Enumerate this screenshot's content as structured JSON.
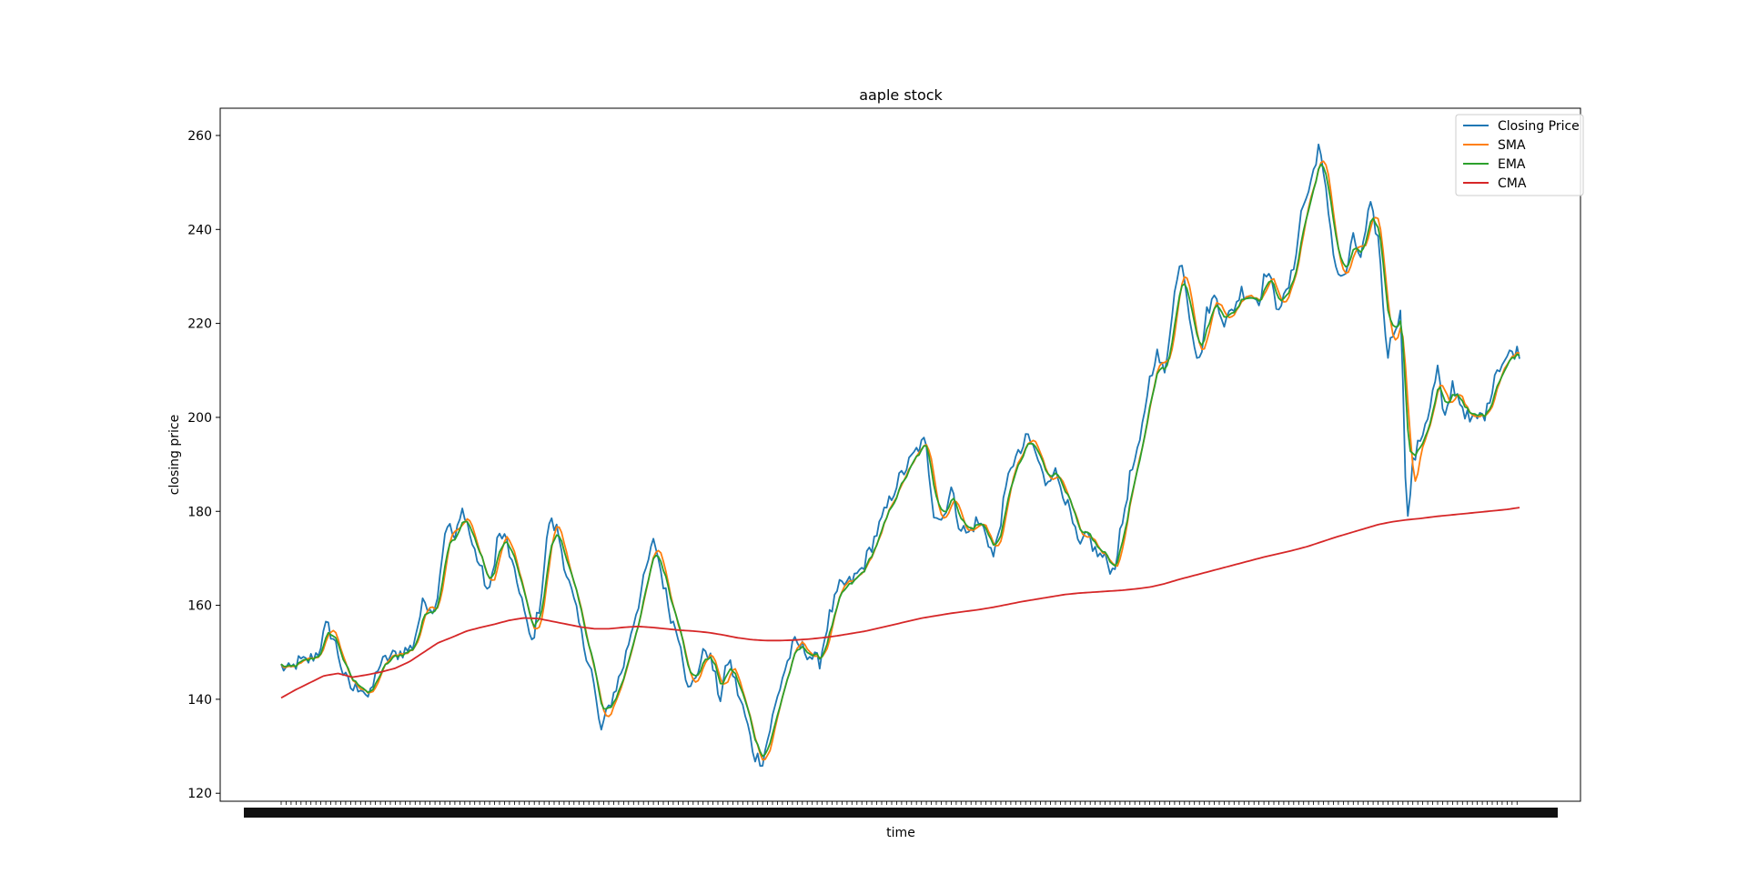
{
  "chart_data": {
    "type": "line",
    "title": "aaple stock",
    "xlabel": "time",
    "ylabel": "closing price",
    "ylim": [
      118.3,
      265.8
    ],
    "yticks": [
      120,
      140,
      160,
      180,
      200,
      220,
      240,
      260
    ],
    "grid": false,
    "legend_position": "top-right",
    "x_tick_labels": "dense, overlapping and illegible",
    "colors": {
      "Closing Price": "#1f77b4",
      "SMA": "#ff7f0e",
      "EMA": "#2ca02c",
      "CMA": "#d62728"
    },
    "n_points": 500,
    "closing_anchors": [
      [
        0,
        147
      ],
      [
        6,
        146
      ],
      [
        12,
        148
      ],
      [
        18,
        148
      ],
      [
        26,
        150
      ],
      [
        32,
        156
      ],
      [
        38,
        152
      ],
      [
        44,
        145
      ],
      [
        50,
        142
      ],
      [
        56,
        143
      ],
      [
        62,
        140
      ],
      [
        68,
        147
      ],
      [
        76,
        149
      ],
      [
        84,
        150
      ],
      [
        92,
        151
      ],
      [
        100,
        161
      ],
      [
        108,
        159
      ],
      [
        116,
        178
      ],
      [
        122,
        174
      ],
      [
        128,
        181
      ],
      [
        134,
        173
      ],
      [
        140,
        168
      ],
      [
        146,
        162
      ],
      [
        152,
        175
      ],
      [
        158,
        174
      ],
      [
        164,
        166
      ],
      [
        168,
        163
      ],
      [
        172,
        156
      ],
      [
        176,
        152
      ],
      [
        182,
        161
      ],
      [
        188,
        178
      ],
      [
        194,
        176
      ],
      [
        200,
        167
      ],
      [
        206,
        160
      ],
      [
        212,
        152
      ],
      [
        218,
        146
      ],
      [
        224,
        133
      ],
      [
        232,
        140
      ],
      [
        240,
        147
      ],
      [
        246,
        155
      ],
      [
        252,
        162
      ],
      [
        258,
        170
      ],
      [
        262,
        174
      ],
      [
        268,
        165
      ],
      [
        274,
        157
      ],
      [
        280,
        153
      ],
      [
        286,
        141
      ],
      [
        292,
        146
      ],
      [
        298,
        151
      ],
      [
        302,
        148
      ],
      [
        308,
        140
      ],
      [
        314,
        149
      ],
      [
        320,
        142
      ],
      [
        326,
        136
      ],
      [
        332,
        128
      ],
      [
        338,
        127
      ],
      [
        344,
        135
      ],
      [
        352,
        145
      ],
      [
        360,
        152
      ],
      [
        366,
        151
      ],
      [
        372,
        149
      ],
      [
        378,
        148
      ],
      [
        384,
        157
      ],
      [
        392,
        164
      ],
      [
        400,
        165
      ],
      [
        408,
        168
      ],
      [
        416,
        174
      ],
      [
        424,
        180
      ],
      [
        432,
        186
      ],
      [
        440,
        190
      ],
      [
        446,
        193
      ],
      [
        452,
        195
      ],
      [
        458,
        180
      ],
      [
        464,
        178
      ],
      [
        470,
        185
      ],
      [
        476,
        177
      ],
      [
        482,
        175
      ],
      [
        488,
        178
      ],
      [
        494,
        176
      ],
      [
        500,
        170
      ],
      [
        506,
        180
      ],
      [
        512,
        190
      ],
      [
        518,
        192
      ],
      [
        524,
        196
      ],
      [
        530,
        192
      ],
      [
        536,
        186
      ],
      [
        542,
        189
      ],
      [
        548,
        185
      ],
      [
        554,
        179
      ],
      [
        560,
        172
      ],
      [
        566,
        175
      ],
      [
        572,
        171
      ],
      [
        578,
        170
      ],
      [
        584,
        167
      ],
      [
        590,
        177
      ],
      [
        596,
        188
      ],
      [
        602,
        193
      ],
      [
        608,
        206
      ],
      [
        614,
        214
      ],
      [
        620,
        209
      ],
      [
        626,
        225
      ],
      [
        632,
        234
      ],
      [
        638,
        221
      ],
      [
        644,
        211
      ],
      [
        650,
        223
      ],
      [
        656,
        226
      ],
      [
        662,
        220
      ],
      [
        668,
        223
      ],
      [
        674,
        227
      ],
      [
        680,
        226
      ],
      [
        686,
        225
      ],
      [
        692,
        232
      ],
      [
        698,
        224
      ],
      [
        704,
        225
      ],
      [
        710,
        231
      ],
      [
        716,
        244
      ],
      [
        722,
        249
      ],
      [
        728,
        258
      ],
      [
        734,
        246
      ],
      [
        740,
        232
      ],
      [
        746,
        229
      ],
      [
        752,
        238
      ],
      [
        758,
        234
      ],
      [
        764,
        245
      ],
      [
        770,
        238
      ],
      [
        776,
        213
      ],
      [
        782,
        220
      ],
      [
        786,
        222
      ],
      [
        790,
        176
      ],
      [
        794,
        190
      ],
      [
        800,
        196
      ],
      [
        806,
        202
      ],
      [
        812,
        211
      ],
      [
        816,
        198
      ],
      [
        822,
        207
      ],
      [
        828,
        203
      ],
      [
        834,
        199
      ],
      [
        840,
        200
      ],
      [
        846,
        201
      ],
      [
        852,
        210
      ],
      [
        858,
        212
      ],
      [
        864,
        214
      ],
      [
        869,
        214
      ]
    ],
    "cma_anchors": [
      [
        0,
        140.3
      ],
      [
        10,
        142
      ],
      [
        20,
        143.5
      ],
      [
        30,
        145
      ],
      [
        40,
        145.5
      ],
      [
        50,
        144.7
      ],
      [
        60,
        145.2
      ],
      [
        70,
        145.8
      ],
      [
        80,
        146.6
      ],
      [
        90,
        148
      ],
      [
        100,
        150
      ],
      [
        110,
        152
      ],
      [
        120,
        153.2
      ],
      [
        130,
        154.5
      ],
      [
        140,
        155.3
      ],
      [
        150,
        156
      ],
      [
        160,
        156.8
      ],
      [
        170,
        157.3
      ],
      [
        180,
        157.2
      ],
      [
        190,
        156.6
      ],
      [
        200,
        156
      ],
      [
        210,
        155.4
      ],
      [
        220,
        155
      ],
      [
        230,
        155
      ],
      [
        240,
        155.3
      ],
      [
        250,
        155.5
      ],
      [
        260,
        155.3
      ],
      [
        270,
        155
      ],
      [
        280,
        154.7
      ],
      [
        290,
        154.5
      ],
      [
        300,
        154.2
      ],
      [
        310,
        153.7
      ],
      [
        320,
        153.1
      ],
      [
        330,
        152.7
      ],
      [
        340,
        152.5
      ],
      [
        350,
        152.5
      ],
      [
        360,
        152.6
      ],
      [
        370,
        152.8
      ],
      [
        380,
        153.1
      ],
      [
        390,
        153.5
      ],
      [
        400,
        154
      ],
      [
        410,
        154.5
      ],
      [
        420,
        155.2
      ],
      [
        430,
        155.9
      ],
      [
        440,
        156.6
      ],
      [
        450,
        157.3
      ],
      [
        460,
        157.8
      ],
      [
        470,
        158.3
      ],
      [
        480,
        158.7
      ],
      [
        490,
        159.1
      ],
      [
        500,
        159.6
      ],
      [
        510,
        160.2
      ],
      [
        520,
        160.8
      ],
      [
        530,
        161.3
      ],
      [
        540,
        161.8
      ],
      [
        550,
        162.3
      ],
      [
        560,
        162.6
      ],
      [
        570,
        162.8
      ],
      [
        580,
        163
      ],
      [
        590,
        163.2
      ],
      [
        600,
        163.5
      ],
      [
        610,
        163.9
      ],
      [
        620,
        164.6
      ],
      [
        630,
        165.5
      ],
      [
        640,
        166.3
      ],
      [
        650,
        167.1
      ],
      [
        660,
        167.9
      ],
      [
        670,
        168.7
      ],
      [
        680,
        169.5
      ],
      [
        690,
        170.3
      ],
      [
        700,
        171
      ],
      [
        710,
        171.7
      ],
      [
        720,
        172.5
      ],
      [
        730,
        173.5
      ],
      [
        740,
        174.5
      ],
      [
        750,
        175.4
      ],
      [
        760,
        176.3
      ],
      [
        770,
        177.2
      ],
      [
        780,
        177.8
      ],
      [
        790,
        178.2
      ],
      [
        800,
        178.5
      ],
      [
        810,
        178.9
      ],
      [
        820,
        179.2
      ],
      [
        830,
        179.5
      ],
      [
        840,
        179.8
      ],
      [
        850,
        180.1
      ],
      [
        860,
        180.4
      ],
      [
        869,
        180.8
      ]
    ],
    "series": [
      {
        "name": "Closing Price"
      },
      {
        "name": "SMA"
      },
      {
        "name": "EMA"
      },
      {
        "name": "CMA"
      }
    ]
  }
}
